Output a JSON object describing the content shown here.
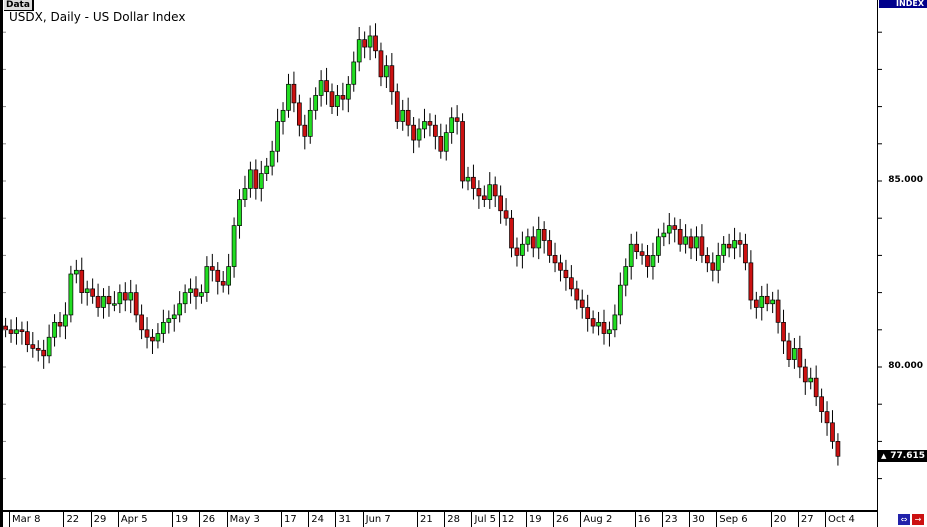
{
  "header": {
    "tab_label": "Data",
    "title": "USDX, Daily - US Dollar Index",
    "index_label": "INDEX"
  },
  "colors": {
    "bull": "#22dd22",
    "bear": "#cc1111",
    "outline": "#000000",
    "price_box": "#000000"
  },
  "icons": {
    "scroll_icon": "fit-chart-icon",
    "exit_icon": "exit-arrow-icon"
  },
  "chart_data": {
    "type": "candlestick",
    "title": "USDX, Daily - US Dollar Index",
    "ylim": [
      76.2,
      89.9
    ],
    "y_tick_labels": [
      "85.000",
      "80.000"
    ],
    "y_tick_values": [
      85,
      80
    ],
    "current_price": "77.615",
    "current_price_value": 77.615,
    "x_tick_labels": [
      {
        "label": "Mar 8",
        "index": 1
      },
      {
        "label": "22",
        "index": 11
      },
      {
        "label": "29",
        "index": 16
      },
      {
        "label": "Apr 5",
        "index": 21
      },
      {
        "label": "19",
        "index": 31
      },
      {
        "label": "26",
        "index": 36
      },
      {
        "label": "May 3",
        "index": 41
      },
      {
        "label": "17",
        "index": 51
      },
      {
        "label": "24",
        "index": 56
      },
      {
        "label": "31",
        "index": 61
      },
      {
        "label": "Jun 7",
        "index": 66
      },
      {
        "label": "21",
        "index": 76
      },
      {
        "label": "28",
        "index": 81
      },
      {
        "label": "Jul 5",
        "index": 86
      },
      {
        "label": "12",
        "index": 91
      },
      {
        "label": "19",
        "index": 96
      },
      {
        "label": "26",
        "index": 101
      },
      {
        "label": "Aug 2",
        "index": 106
      },
      {
        "label": "16",
        "index": 116
      },
      {
        "label": "23",
        "index": 121
      },
      {
        "label": "30",
        "index": 126
      },
      {
        "label": "Sep 6",
        "index": 131
      },
      {
        "label": "20",
        "index": 141
      },
      {
        "label": "27",
        "index": 146
      },
      {
        "label": "Oct 4",
        "index": 151
      }
    ],
    "close": [
      81.0,
      80.9,
      81.0,
      80.95,
      80.6,
      80.5,
      80.45,
      80.3,
      80.8,
      81.2,
      81.1,
      81.4,
      82.5,
      82.6,
      82.0,
      82.1,
      81.9,
      81.6,
      81.9,
      81.7,
      81.7,
      82.0,
      81.8,
      82.0,
      81.4,
      81.0,
      80.8,
      80.7,
      80.9,
      81.2,
      81.3,
      81.4,
      81.7,
      82.0,
      82.1,
      81.9,
      82.0,
      82.7,
      82.6,
      82.3,
      82.2,
      82.7,
      83.8,
      84.5,
      84.8,
      85.3,
      84.8,
      85.2,
      85.4,
      85.8,
      86.6,
      86.9,
      87.6,
      87.1,
      86.5,
      86.2,
      86.9,
      87.3,
      87.7,
      87.4,
      87.0,
      87.3,
      87.2,
      87.6,
      88.2,
      88.8,
      88.6,
      88.9,
      88.5,
      87.8,
      88.1,
      87.4,
      86.6,
      86.9,
      86.5,
      86.1,
      86.4,
      86.6,
      86.5,
      86.2,
      85.8,
      86.3,
      86.7,
      86.6,
      85.0,
      85.1,
      84.8,
      84.6,
      84.5,
      84.9,
      84.6,
      84.2,
      84.0,
      83.2,
      83.0,
      83.3,
      83.5,
      83.2,
      83.7,
      83.4,
      83.0,
      82.8,
      82.6,
      82.4,
      82.1,
      81.8,
      81.6,
      81.3,
      81.1,
      81.2,
      80.9,
      81.0,
      81.4,
      82.2,
      82.7,
      83.3,
      83.1,
      83.0,
      82.7,
      83.0,
      83.5,
      83.6,
      83.8,
      83.7,
      83.3,
      83.5,
      83.2,
      83.5,
      83.0,
      82.8,
      82.6,
      83.0,
      83.3,
      83.2,
      83.4,
      83.3,
      82.8,
      81.8,
      81.6,
      81.9,
      81.7,
      81.8,
      81.2,
      80.7,
      80.2,
      80.5,
      80.0,
      79.6,
      79.7,
      79.2,
      78.8,
      78.5,
      78.0,
      77.6
    ]
  }
}
